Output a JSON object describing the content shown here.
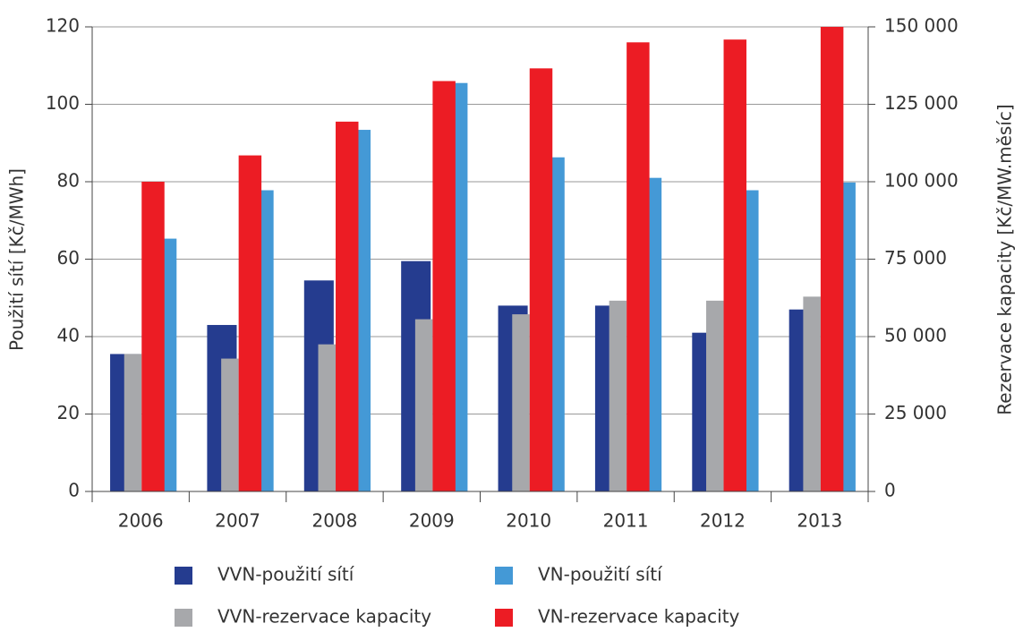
{
  "chart_data": {
    "type": "bar",
    "categories": [
      "2006",
      "2007",
      "2008",
      "2009",
      "2010",
      "2011",
      "2012",
      "2013"
    ],
    "y_label": "Použití sítí [Kč/MWh]",
    "y2_label": "Rezervace kapacity [Kč/MW.měsíc]",
    "ylim": [
      0,
      120
    ],
    "yticks": [
      0,
      20,
      40,
      60,
      80,
      100,
      120
    ],
    "y2lim": [
      0,
      150000
    ],
    "y2ticks": [
      {
        "value": 0,
        "label": "0"
      },
      {
        "value": 25000,
        "label": "25 000"
      },
      {
        "value": 50000,
        "label": "50 000"
      },
      {
        "value": 75000,
        "label": "75 000"
      },
      {
        "value": 100000,
        "label": "100 000"
      },
      {
        "value": 125000,
        "label": "125 000"
      },
      {
        "value": 150000,
        "label": "150 000"
      }
    ],
    "grid": true,
    "legend": "bottom",
    "series": [
      {
        "name": "VVN-použití sítí",
        "color": "#253c8f",
        "values": [
          35.5,
          43,
          54.5,
          59.5,
          48,
          48,
          41,
          47
        ]
      },
      {
        "name": "VN-použití sítí",
        "color": "#4499d6",
        "values": [
          65.3,
          77.8,
          93.4,
          105.5,
          86.3,
          81,
          77.8,
          79.8
        ]
      },
      {
        "name": "VVN-rezervace kapacity",
        "color": "#a7a8ab",
        "axis": "y2",
        "values": [
          44400,
          42900,
          47500,
          55600,
          57200,
          61600,
          61600,
          62900
        ]
      },
      {
        "name": "VN-rezervace kapacity",
        "color": "#ec1c24",
        "axis": "y2",
        "values": [
          100000,
          108500,
          119400,
          132500,
          136600,
          145000,
          145900,
          150000
        ]
      }
    ]
  }
}
